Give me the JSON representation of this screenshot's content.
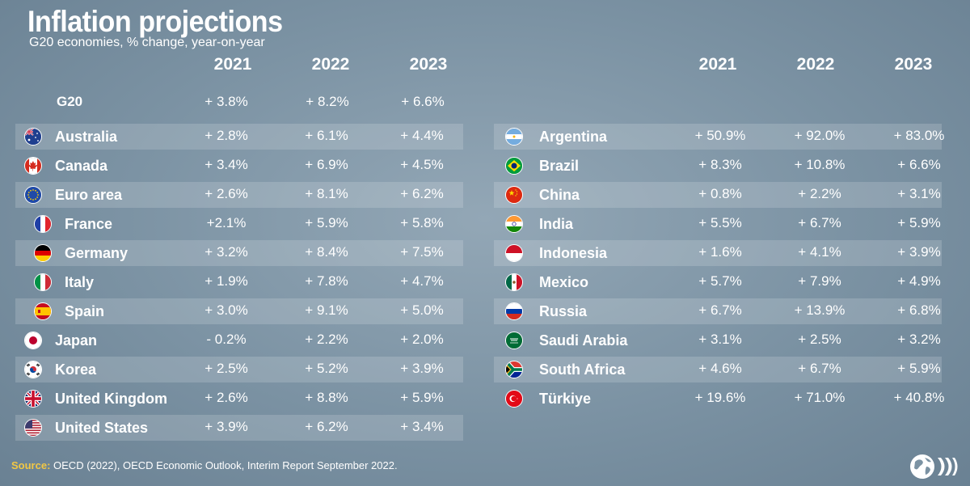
{
  "header": {
    "title": "Inflation projections",
    "subtitle": "G20 economies, % change, year-on-year"
  },
  "chart_data": {
    "type": "table",
    "title": "Inflation projections",
    "subtitle": "G20 economies, % change, year-on-year",
    "years": [
      "2021",
      "2022",
      "2023"
    ],
    "g20": {
      "label": "G20",
      "values": [
        "+ 3.8%",
        "+ 8.2%",
        "+ 6.6%"
      ]
    },
    "left": [
      {
        "name": "Australia",
        "flag": "australia-flag",
        "values": [
          "+ 2.8%",
          "+ 6.1%",
          "+ 4.4%"
        ],
        "indent": false
      },
      {
        "name": "Canada",
        "flag": "canada-flag",
        "values": [
          "+ 3.4%",
          "+ 6.9%",
          "+ 4.5%"
        ],
        "indent": false
      },
      {
        "name": "Euro area",
        "flag": "euro-area-flag",
        "values": [
          "+ 2.6%",
          "+ 8.1%",
          "+ 6.2%"
        ],
        "indent": false
      },
      {
        "name": "France",
        "flag": "france-flag",
        "values": [
          "+2.1%",
          "+ 5.9%",
          "+ 5.8%"
        ],
        "indent": true
      },
      {
        "name": "Germany",
        "flag": "germany-flag",
        "values": [
          "+ 3.2%",
          "+ 8.4%",
          "+ 7.5%"
        ],
        "indent": true
      },
      {
        "name": "Italy",
        "flag": "italy-flag",
        "values": [
          "+ 1.9%",
          "+ 7.8%",
          "+ 4.7%"
        ],
        "indent": true
      },
      {
        "name": "Spain",
        "flag": "spain-flag",
        "values": [
          "+ 3.0%",
          "+ 9.1%",
          "+ 5.0%"
        ],
        "indent": true
      },
      {
        "name": "Japan",
        "flag": "japan-flag",
        "values": [
          "- 0.2%",
          "+ 2.2%",
          "+ 2.0%"
        ],
        "indent": false
      },
      {
        "name": "Korea",
        "flag": "korea-flag",
        "values": [
          "+ 2.5%",
          "+ 5.2%",
          "+ 3.9%"
        ],
        "indent": false
      },
      {
        "name": "United Kingdom",
        "flag": "uk-flag",
        "values": [
          "+ 2.6%",
          "+ 8.8%",
          "+ 5.9%"
        ],
        "indent": false
      },
      {
        "name": "United States",
        "flag": "us-flag",
        "values": [
          "+ 3.9%",
          "+ 6.2%",
          "+ 3.4%"
        ],
        "indent": false
      }
    ],
    "right": [
      {
        "name": "Argentina",
        "flag": "argentina-flag",
        "values": [
          "+ 50.9%",
          "+ 92.0%",
          "+ 83.0%"
        ]
      },
      {
        "name": "Brazil",
        "flag": "brazil-flag",
        "values": [
          "+ 8.3%",
          "+ 10.8%",
          "+ 6.6%"
        ]
      },
      {
        "name": "China",
        "flag": "china-flag",
        "values": [
          "+ 0.8%",
          "+ 2.2%",
          "+ 3.1%"
        ]
      },
      {
        "name": "India",
        "flag": "india-flag",
        "values": [
          "+ 5.5%",
          "+ 6.7%",
          "+ 5.9%"
        ]
      },
      {
        "name": "Indonesia",
        "flag": "indonesia-flag",
        "values": [
          "+ 1.6%",
          "+ 4.1%",
          "+ 3.9%"
        ]
      },
      {
        "name": "Mexico",
        "flag": "mexico-flag",
        "values": [
          "+ 5.7%",
          "+ 7.9%",
          "+ 4.9%"
        ]
      },
      {
        "name": "Russia",
        "flag": "russia-flag",
        "values": [
          "+ 6.7%",
          "+ 13.9%",
          "+ 6.8%"
        ]
      },
      {
        "name": "Saudi Arabia",
        "flag": "saudi-arabia-flag",
        "values": [
          "+ 3.1%",
          "+ 2.5%",
          "+ 3.2%"
        ]
      },
      {
        "name": "South Africa",
        "flag": "south-africa-flag",
        "values": [
          "+ 4.6%",
          "+ 6.7%",
          "+ 5.9%"
        ]
      },
      {
        "name": "Türkiye",
        "flag": "turkiye-flag",
        "values": [
          "+ 19.6%",
          "+ 71.0%",
          "+ 40.8%"
        ]
      }
    ]
  },
  "footer": {
    "source_label": "Source:",
    "source_text": " OECD (2022), OECD Economic Outlook, Interim Report September 2022."
  },
  "logo": {
    "name": "oecd-logo-icon"
  },
  "colors": {
    "background": "#7b92a3",
    "source_label": "#f2c744"
  }
}
